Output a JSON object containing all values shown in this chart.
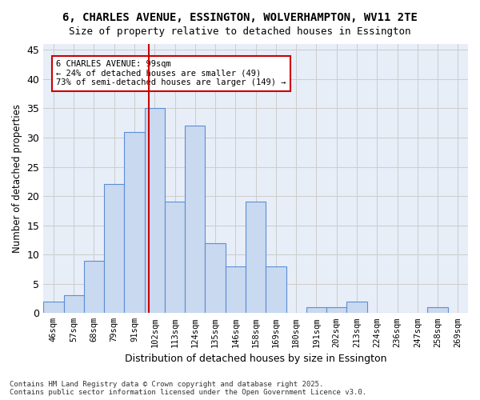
{
  "title_line1": "6, CHARLES AVENUE, ESSINGTON, WOLVERHAMPTON, WV11 2TE",
  "title_line2": "Size of property relative to detached houses in Essington",
  "xlabel": "Distribution of detached houses by size in Essington",
  "ylabel": "Number of detached properties",
  "bin_labels": [
    "46sqm",
    "57sqm",
    "68sqm",
    "79sqm",
    "91sqm",
    "102sqm",
    "113sqm",
    "124sqm",
    "135sqm",
    "146sqm",
    "158sqm",
    "169sqm",
    "180sqm",
    "191sqm",
    "202sqm",
    "213sqm",
    "224sqm",
    "236sqm",
    "247sqm",
    "258sqm",
    "269sqm"
  ],
  "bar_values": [
    2,
    3,
    9,
    22,
    31,
    35,
    19,
    32,
    12,
    8,
    19,
    8,
    0,
    1,
    1,
    2,
    0,
    0,
    0,
    1,
    0
  ],
  "bar_color": "#c9d9f0",
  "bar_edgecolor": "#5b8fd4",
  "grid_color": "#cccccc",
  "vline_color": "#cc0000",
  "annotation_text": "6 CHARLES AVENUE: 99sqm\n← 24% of detached houses are smaller (49)\n73% of semi-detached houses are larger (149) →",
  "annotation_box_edgecolor": "#cc0000",
  "ylim": [
    0,
    46
  ],
  "yticks": [
    0,
    5,
    10,
    15,
    20,
    25,
    30,
    35,
    40,
    45
  ],
  "footnote_line1": "Contains HM Land Registry data © Crown copyright and database right 2025.",
  "footnote_line2": "Contains public sector information licensed under the Open Government Licence v3.0.",
  "background_color": "#ffffff",
  "plot_background": "#e8eef8"
}
